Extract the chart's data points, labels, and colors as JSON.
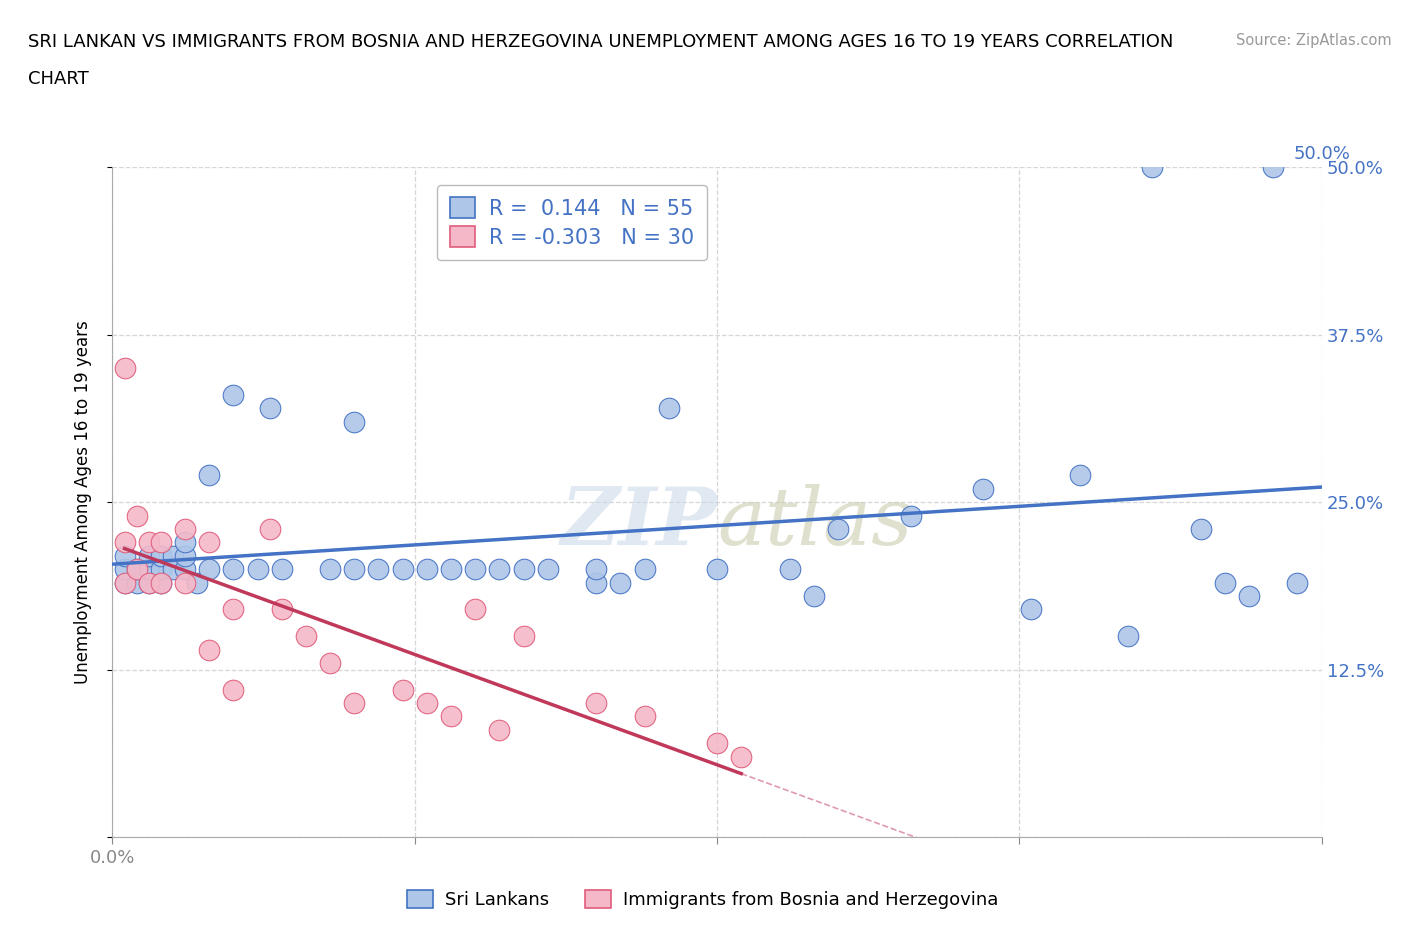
{
  "title_line1": "SRI LANKAN VS IMMIGRANTS FROM BOSNIA AND HERZEGOVINA UNEMPLOYMENT AMONG AGES 16 TO 19 YEARS CORRELATION",
  "title_line2": "CHART",
  "source": "Source: ZipAtlas.com",
  "ylabel": "Unemployment Among Ages 16 to 19 years",
  "xlim": [
    0.0,
    0.5
  ],
  "ylim": [
    0.0,
    0.5
  ],
  "xticks": [
    0.0,
    0.125,
    0.25,
    0.375,
    0.5
  ],
  "yticks": [
    0.0,
    0.125,
    0.25,
    0.375,
    0.5
  ],
  "xticklabels_bottom": [
    "0.0%",
    "",
    "",
    "",
    ""
  ],
  "xticklabels_top": [
    "",
    "",
    "",
    "",
    "50.0%"
  ],
  "yticklabels_right": [
    "",
    "12.5%",
    "25.0%",
    "37.5%",
    "50.0%"
  ],
  "sri_lankan_color": "#aec6e8",
  "bosnia_color": "#f4b8c8",
  "sri_lankan_edge_color": "#4472c4",
  "bosnia_edge_color": "#e05c7a",
  "sri_lankan_line_color": "#4472c4",
  "bosnia_line_color": "#c0395a",
  "r_sri": 0.144,
  "n_sri": 55,
  "r_bos": -0.303,
  "n_bos": 30,
  "watermark_text": "ZIPatlas",
  "legend_label_sri": "Sri Lankans",
  "legend_label_bos": "Immigrants from Bosnia and Herzegovina",
  "sri_x": [
    0.005,
    0.005,
    0.005,
    0.01,
    0.01,
    0.015,
    0.015,
    0.015,
    0.02,
    0.02,
    0.02,
    0.025,
    0.025,
    0.03,
    0.03,
    0.03,
    0.035,
    0.04,
    0.04,
    0.05,
    0.05,
    0.06,
    0.065,
    0.07,
    0.09,
    0.1,
    0.1,
    0.11,
    0.12,
    0.13,
    0.14,
    0.15,
    0.16,
    0.17,
    0.18,
    0.2,
    0.2,
    0.21,
    0.22,
    0.23,
    0.25,
    0.28,
    0.29,
    0.3,
    0.33,
    0.36,
    0.38,
    0.4,
    0.42,
    0.43,
    0.45,
    0.46,
    0.47,
    0.48,
    0.49
  ],
  "sri_y": [
    0.19,
    0.2,
    0.21,
    0.19,
    0.2,
    0.19,
    0.2,
    0.21,
    0.19,
    0.2,
    0.21,
    0.2,
    0.21,
    0.2,
    0.21,
    0.22,
    0.19,
    0.2,
    0.27,
    0.2,
    0.33,
    0.2,
    0.32,
    0.2,
    0.2,
    0.31,
    0.2,
    0.2,
    0.2,
    0.2,
    0.2,
    0.2,
    0.2,
    0.2,
    0.2,
    0.19,
    0.2,
    0.19,
    0.2,
    0.32,
    0.2,
    0.2,
    0.18,
    0.23,
    0.24,
    0.26,
    0.17,
    0.27,
    0.15,
    0.5,
    0.23,
    0.19,
    0.18,
    0.5,
    0.19
  ],
  "bos_x": [
    0.005,
    0.005,
    0.005,
    0.01,
    0.01,
    0.015,
    0.015,
    0.02,
    0.02,
    0.03,
    0.03,
    0.04,
    0.04,
    0.05,
    0.05,
    0.065,
    0.07,
    0.08,
    0.09,
    0.1,
    0.12,
    0.13,
    0.14,
    0.15,
    0.16,
    0.17,
    0.2,
    0.22,
    0.25,
    0.26
  ],
  "bos_y": [
    0.35,
    0.22,
    0.19,
    0.24,
    0.2,
    0.22,
    0.19,
    0.22,
    0.19,
    0.23,
    0.19,
    0.14,
    0.22,
    0.17,
    0.11,
    0.23,
    0.17,
    0.15,
    0.13,
    0.1,
    0.11,
    0.1,
    0.09,
    0.17,
    0.08,
    0.15,
    0.1,
    0.09,
    0.07,
    0.06
  ]
}
